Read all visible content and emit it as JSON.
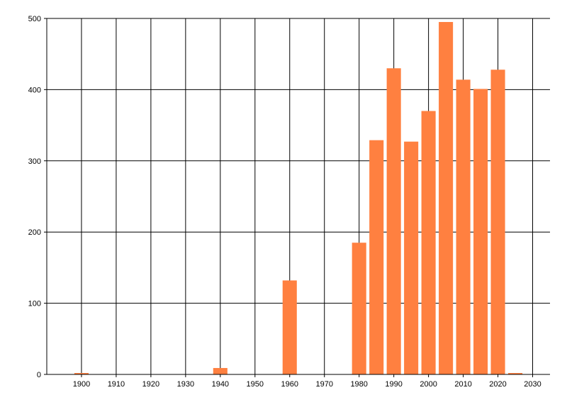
{
  "chart_data": {
    "type": "bar",
    "title": "",
    "xlabel": "",
    "ylabel": "",
    "xlim": [
      1890,
      2035
    ],
    "ylim": [
      0,
      500
    ],
    "grid": true,
    "bar_color": "#FF8040",
    "x_ticks": [
      1900,
      1910,
      1920,
      1930,
      1940,
      1950,
      1960,
      1970,
      1980,
      1990,
      2000,
      2010,
      2020,
      2030
    ],
    "y_ticks": [
      0,
      100,
      200,
      300,
      400,
      500
    ],
    "x": [
      1900,
      1940,
      1960,
      1980,
      1985,
      1990,
      1995,
      2000,
      2005,
      2010,
      2015,
      2020,
      2025
    ],
    "values": [
      2,
      9,
      132,
      185,
      329,
      430,
      327,
      370,
      495,
      414,
      401,
      428,
      2
    ]
  }
}
